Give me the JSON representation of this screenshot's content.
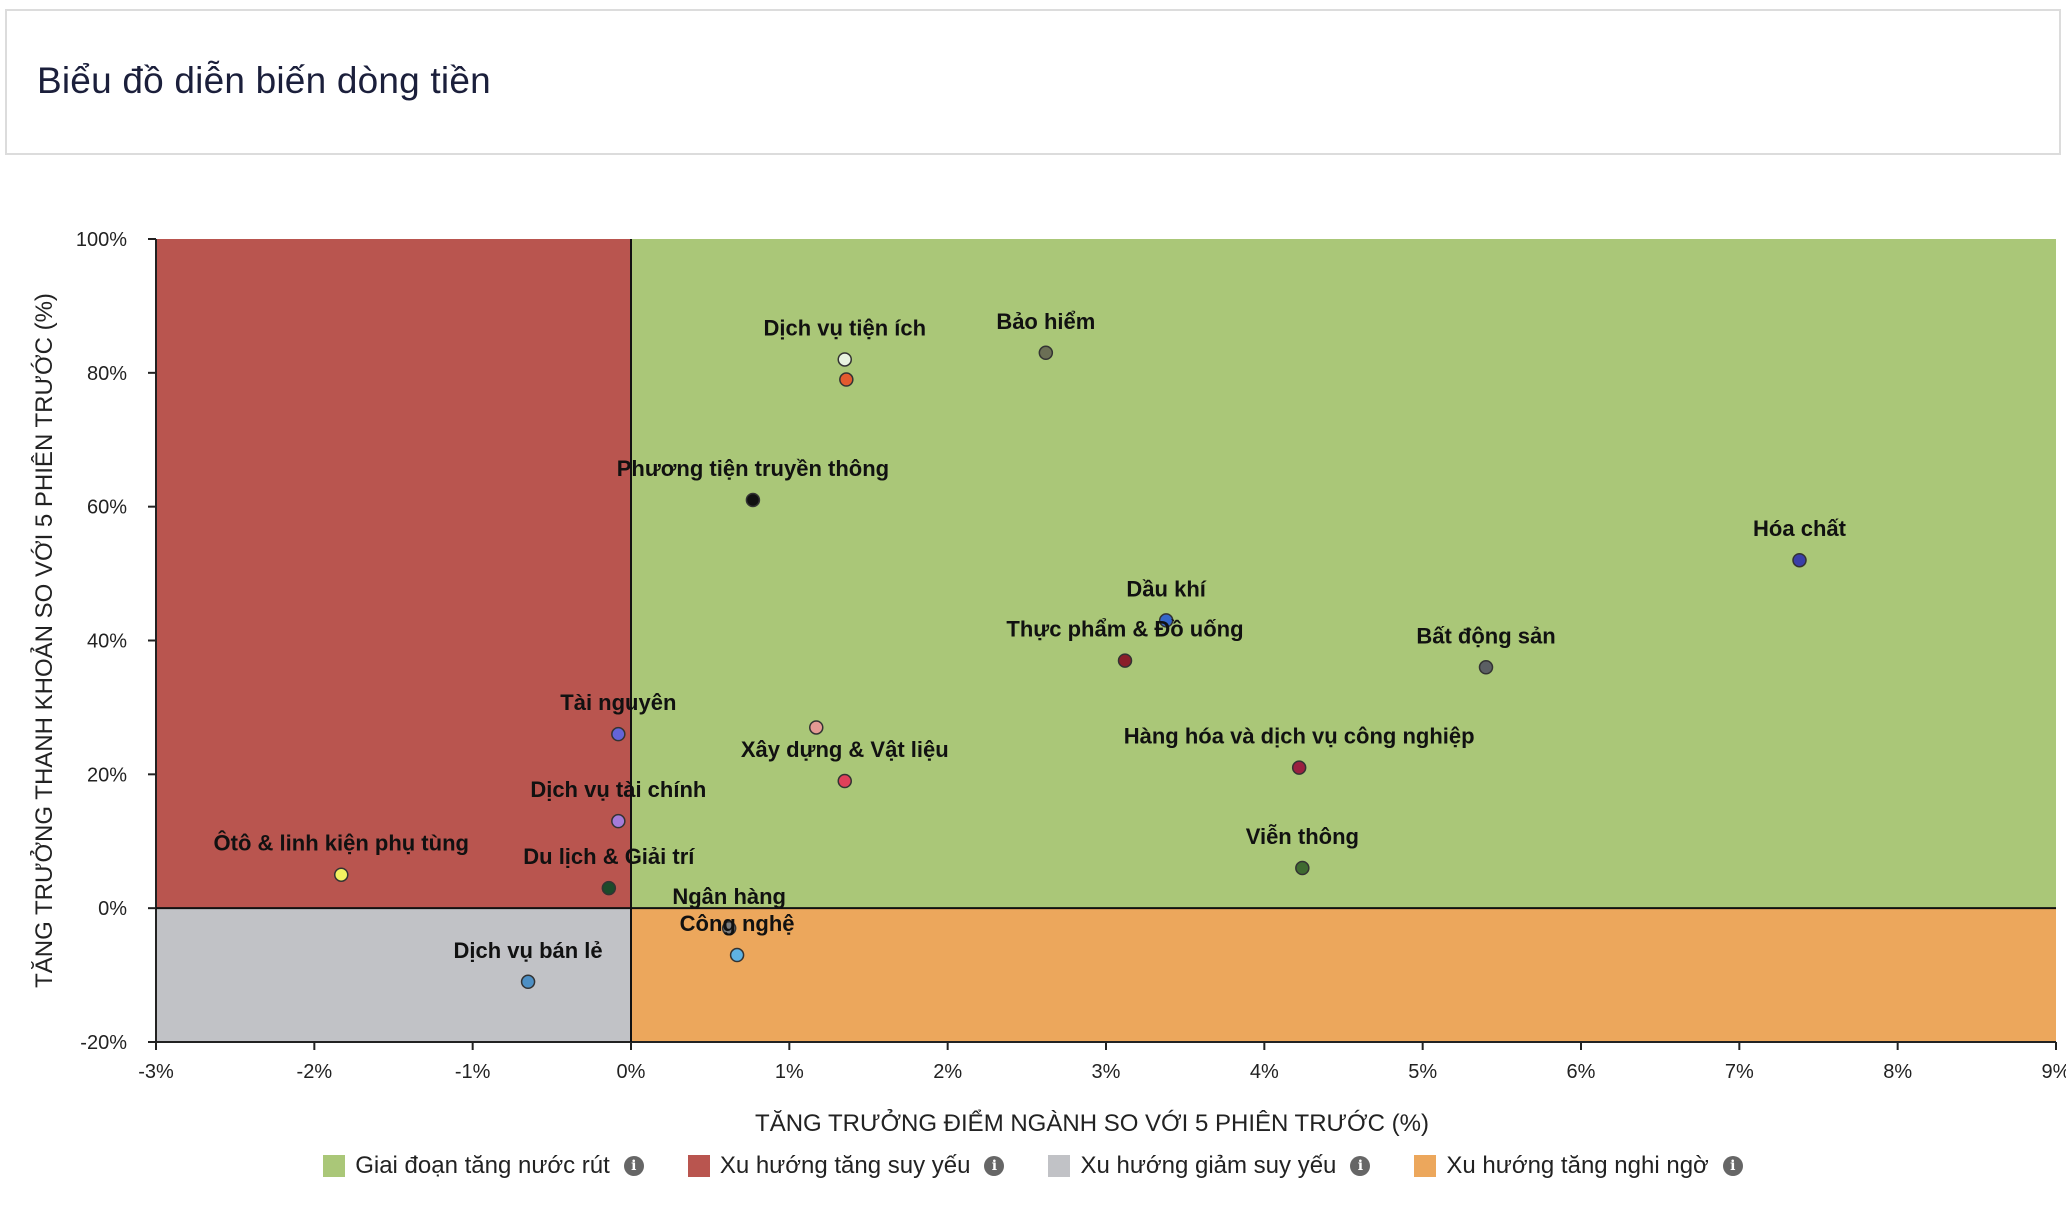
{
  "page": {
    "title": "Biểu đồ diễn biến dòng tiền"
  },
  "colors": {
    "green": "#aac778",
    "red": "#b9554f",
    "gray": "#c1c2c6",
    "orange": "#eca75c"
  },
  "legend": [
    {
      "label": "Giai đoạn tăng nước rút",
      "color": "#aac778",
      "icon": "info-icon"
    },
    {
      "label": "Xu hướng tăng suy yếu",
      "color": "#b9554f",
      "icon": "info-icon"
    },
    {
      "label": "Xu hướng giảm suy yếu",
      "color": "#c1c2c6",
      "icon": "info-icon"
    },
    {
      "label": "Xu hướng tăng nghi ngờ",
      "color": "#eca75c",
      "icon": "info-icon"
    }
  ],
  "chart_data": {
    "type": "scatter",
    "xlabel": "TĂNG TRƯỞNG ĐIỂM NGÀNH SO VỚI 5 PHIÊN TRƯỚC (%)",
    "ylabel": "TĂNG TRƯỞNG THANH KHOẢN SO VỚI 5 PHIÊN TRƯỚC (%)",
    "xlim": [
      -3,
      9
    ],
    "ylim": [
      -20,
      100
    ],
    "xticks": [
      "-3%",
      "-2%",
      "-1%",
      "0%",
      "1%",
      "2%",
      "3%",
      "4%",
      "5%",
      "6%",
      "7%",
      "8%",
      "9%"
    ],
    "yticks": [
      "100%",
      "80%",
      "60%",
      "40%",
      "20%",
      "0%",
      "-20%"
    ],
    "grid": false,
    "legend_position": "bottom",
    "quadrants": [
      "Giai đoạn tăng nước rút",
      "Xu hướng tăng suy yếu",
      "Xu hướng giảm suy yếu",
      "Xu hướng tăng nghi ngờ"
    ],
    "points": [
      {
        "name": "Bảo hiểm",
        "x": 2.62,
        "y": 83,
        "color": "#6b6f55"
      },
      {
        "name": "Dịch vụ tiện ích",
        "x": 1.35,
        "y": 82,
        "color": "#e8f3e0"
      },
      {
        "name": "",
        "x": 1.36,
        "y": 79,
        "color": "#e35a2f"
      },
      {
        "name": "Phương tiện truyền thông",
        "x": 0.77,
        "y": 61,
        "color": "#111111"
      },
      {
        "name": "Hóa chất",
        "x": 7.38,
        "y": 52,
        "color": "#3a3fa8"
      },
      {
        "name": "Dầu khí",
        "x": 3.38,
        "y": 43,
        "color": "#3566c9"
      },
      {
        "name": "Thực phẩm & Đồ uống",
        "x": 3.12,
        "y": 37,
        "color": "#8a1f2a"
      },
      {
        "name": "Bất động sản",
        "x": 5.4,
        "y": 36,
        "color": "#5b5f63"
      },
      {
        "name": "",
        "x": 1.17,
        "y": 27,
        "color": "#e49a94"
      },
      {
        "name": "Tài nguyên",
        "x": -0.08,
        "y": 26,
        "color": "#6464d8"
      },
      {
        "name": "Hàng hóa và dịch vụ công nghiệp",
        "x": 4.22,
        "y": 21,
        "color": "#9a2040"
      },
      {
        "name": "Xây dựng & Vật liệu",
        "x": 1.35,
        "y": 19,
        "color": "#e0405a"
      },
      {
        "name": "Dịch vụ tài chính",
        "x": -0.08,
        "y": 13,
        "color": "#a57bd8"
      },
      {
        "name": "Viễn thông",
        "x": 4.24,
        "y": 6,
        "color": "#3f6a30"
      },
      {
        "name": "Ôtô & linh kiện phụ tùng",
        "x": -1.83,
        "y": 5,
        "color": "#f2f261"
      },
      {
        "name": "Du lịch & Giải trí",
        "x": -0.14,
        "y": 3,
        "color": "#1c4a2a"
      },
      {
        "name": "Ngân hàng",
        "x": 0.62,
        "y": -3,
        "color": "#7a7a7a"
      },
      {
        "name": "Công nghệ",
        "x": 0.67,
        "y": -7,
        "color": "#5fb2e3"
      },
      {
        "name": "Dịch vụ bán lẻ",
        "x": -0.65,
        "y": -11,
        "color": "#4d8fc4"
      }
    ]
  }
}
